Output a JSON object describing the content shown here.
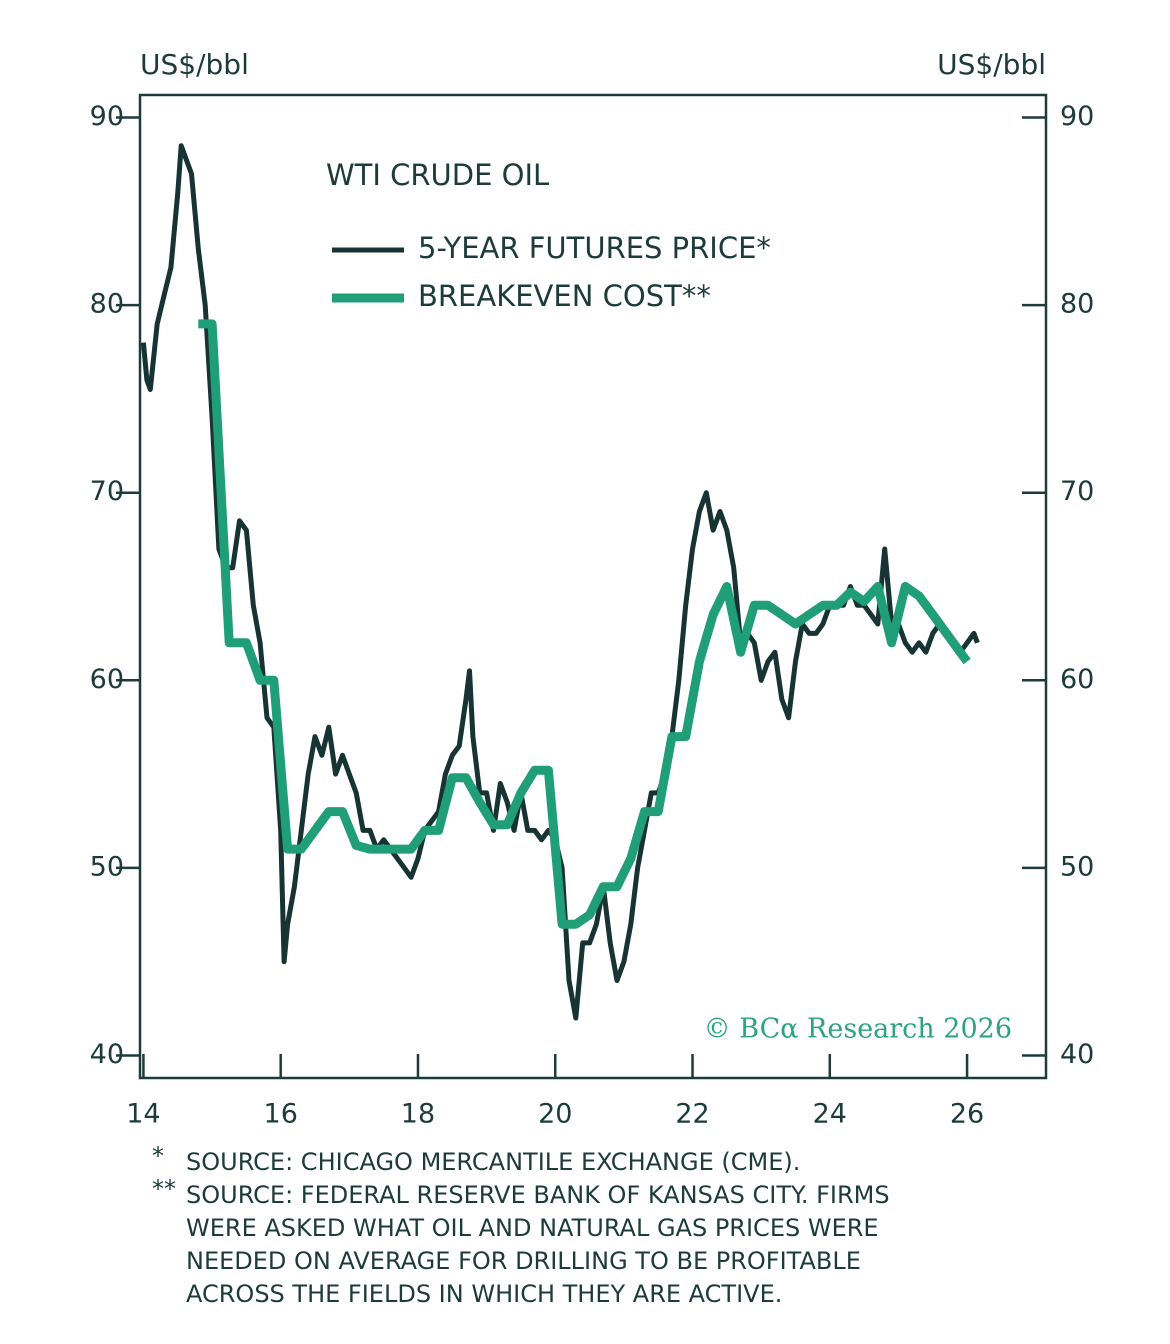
{
  "chart_data": {
    "type": "line",
    "title": "WTI CRUDE OIL",
    "y_label": "US$/bbl",
    "y2_label": "US$/bbl",
    "annotation": "© BCα Research 2026",
    "xlim": [
      13.95,
      27.15
    ],
    "xticks": [
      14,
      16,
      18,
      20,
      22,
      24,
      26
    ],
    "ylim": [
      38.8,
      91.2
    ],
    "yticks": [
      40,
      50,
      60,
      70,
      80,
      90
    ],
    "y2lim": [
      38.8,
      91.2
    ],
    "y2ticks": [
      40,
      50,
      60,
      70,
      80,
      90
    ],
    "series": [
      {
        "name": "5-YEAR FUTURES PRICE*",
        "color": "#173333",
        "width": 5,
        "x": [
          14.0,
          14.05,
          14.1,
          14.2,
          14.3,
          14.4,
          14.5,
          14.55,
          14.6,
          14.7,
          14.8,
          14.9,
          15.0,
          15.1,
          15.2,
          15.3,
          15.4,
          15.5,
          15.6,
          15.7,
          15.8,
          15.9,
          16.0,
          16.05,
          16.1,
          16.2,
          16.3,
          16.4,
          16.5,
          16.6,
          16.7,
          16.8,
          16.9,
          17.0,
          17.1,
          17.2,
          17.3,
          17.4,
          17.5,
          17.6,
          17.7,
          17.8,
          17.9,
          18.0,
          18.1,
          18.2,
          18.3,
          18.4,
          18.5,
          18.6,
          18.7,
          18.75,
          18.8,
          18.9,
          19.0,
          19.1,
          19.2,
          19.3,
          19.4,
          19.5,
          19.6,
          19.7,
          19.8,
          19.9,
          20.0,
          20.1,
          20.2,
          20.3,
          20.4,
          20.5,
          20.6,
          20.7,
          20.8,
          20.9,
          21.0,
          21.1,
          21.2,
          21.3,
          21.4,
          21.5,
          21.6,
          21.7,
          21.8,
          21.9,
          22.0,
          22.1,
          22.2,
          22.3,
          22.4,
          22.5,
          22.6,
          22.7,
          22.8,
          22.9,
          23.0,
          23.1,
          23.2,
          23.3,
          23.4,
          23.5,
          23.6,
          23.7,
          23.8,
          23.9,
          24.0,
          24.1,
          24.2,
          24.3,
          24.4,
          24.5,
          24.6,
          24.7,
          24.8,
          24.9,
          25.0,
          25.1,
          25.2,
          25.3,
          25.4,
          25.5,
          25.6,
          25.7,
          25.8,
          25.9,
          26.0,
          26.1,
          26.15
        ],
        "values": [
          78,
          76,
          75.5,
          79,
          80.5,
          82,
          86,
          88.5,
          88,
          87,
          83,
          80,
          74,
          67,
          66,
          66,
          68.5,
          68,
          64,
          62,
          58,
          57.5,
          52,
          45,
          47,
          49,
          52,
          55,
          57,
          56,
          57.5,
          55,
          56,
          55,
          54,
          52,
          52,
          51,
          51.5,
          51,
          50.5,
          50,
          49.5,
          50.5,
          52,
          52.5,
          53,
          55,
          56,
          56.5,
          59,
          60.5,
          57,
          54,
          54,
          52,
          54.5,
          53.5,
          52,
          54,
          52,
          52,
          51.5,
          52,
          51.5,
          50,
          44,
          42,
          46,
          46,
          47,
          49,
          46,
          44,
          45,
          47,
          50,
          52,
          54,
          54,
          55,
          57,
          60,
          64,
          67,
          69,
          70,
          68,
          69,
          68,
          66,
          62,
          62.5,
          62,
          60,
          61,
          61.5,
          59,
          58,
          61,
          63,
          62.5,
          62.5,
          63,
          64,
          64,
          64,
          65,
          64,
          64,
          63.5,
          63,
          67,
          63,
          63,
          62,
          61.5,
          62,
          61.5,
          62.5,
          63,
          62.5,
          62,
          61.5,
          62,
          62.5,
          62
        ]
      },
      {
        "name": "BREAKEVEN COST**",
        "color": "#1f9e78",
        "width": 9,
        "x": [
          14.8,
          15.0,
          15.25,
          15.5,
          15.7,
          15.9,
          16.1,
          16.3,
          16.5,
          16.7,
          16.9,
          17.1,
          17.3,
          17.5,
          17.7,
          17.9,
          18.1,
          18.3,
          18.5,
          18.7,
          18.9,
          19.1,
          19.3,
          19.5,
          19.7,
          19.9,
          20.1,
          20.3,
          20.5,
          20.7,
          20.9,
          21.1,
          21.3,
          21.5,
          21.7,
          21.9,
          22.1,
          22.3,
          22.5,
          22.7,
          22.9,
          23.1,
          23.3,
          23.5,
          23.7,
          23.9,
          24.1,
          24.3,
          24.5,
          24.7,
          24.9,
          25.1,
          25.3,
          25.5,
          25.7,
          25.9,
          26.0
        ],
        "values": [
          79,
          79,
          62,
          62,
          60,
          60,
          51,
          51,
          52,
          53,
          53,
          51.2,
          51,
          51,
          51,
          51,
          52,
          52,
          54.8,
          54.8,
          53.5,
          52.3,
          52.3,
          54,
          55.2,
          55.2,
          47,
          47,
          47.5,
          49,
          49,
          50.5,
          53,
          53,
          57,
          57,
          61,
          63.5,
          65,
          61.5,
          64,
          64,
          63.5,
          63,
          63.5,
          64,
          64,
          64.7,
          64.2,
          65,
          62,
          65,
          64.5,
          63.5,
          62.5,
          61.5,
          61
        ]
      }
    ],
    "notes": [
      {
        "marker": "*",
        "lines": [
          "SOURCE: CHICAGO MERCANTILE EXCHANGE (CME)."
        ]
      },
      {
        "marker": "**",
        "lines": [
          "SOURCE: FEDERAL RESERVE BANK OF KANSAS CITY. FIRMS",
          "WERE ASKED WHAT OIL AND NATURAL GAS PRICES WERE",
          "NEEDED ON AVERAGE FOR DRILLING TO BE PROFITABLE",
          "ACROSS THE FIELDS IN WHICH THEY ARE ACTIVE."
        ]
      }
    ]
  }
}
